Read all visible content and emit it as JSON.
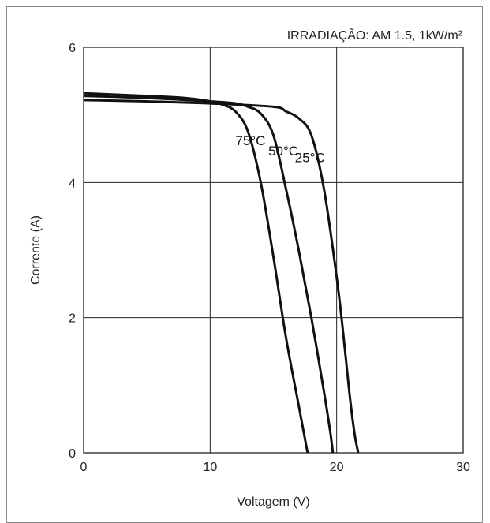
{
  "chart_data": {
    "type": "line",
    "title": "IRRADIAÇÃO: AM 1.5, 1kW/m²",
    "xlabel": "Voltagem (V)",
    "ylabel": "Corrente (A)",
    "xlim": [
      0,
      30
    ],
    "ylim": [
      0,
      6
    ],
    "x_ticks": [
      "0",
      "10",
      "20",
      "30"
    ],
    "y_ticks": [
      "0",
      "2",
      "4",
      "6"
    ],
    "grid": true,
    "series": [
      {
        "name": "75°C",
        "x": [
          0,
          5,
          8,
          10,
          11,
          12,
          13,
          14,
          15,
          16,
          17,
          17.5,
          17.7
        ],
        "y": [
          5.32,
          5.28,
          5.25,
          5.2,
          5.15,
          5.05,
          4.75,
          4.0,
          2.9,
          1.7,
          0.7,
          0.2,
          0
        ]
      },
      {
        "name": "50°C",
        "x": [
          0,
          5,
          10,
          12,
          13,
          14,
          15,
          16,
          17,
          18,
          19,
          19.5,
          19.7
        ],
        "y": [
          5.28,
          5.25,
          5.2,
          5.17,
          5.12,
          5.02,
          4.7,
          3.9,
          3.0,
          2.0,
          0.9,
          0.3,
          0
        ]
      },
      {
        "name": "25°C",
        "x": [
          0,
          5,
          10,
          15,
          16,
          17,
          18,
          19,
          20,
          20.5,
          21,
          21.4,
          21.7
        ],
        "y": [
          5.22,
          5.2,
          5.17,
          5.12,
          5.05,
          4.95,
          4.7,
          3.9,
          2.6,
          1.8,
          0.9,
          0.3,
          0
        ]
      }
    ]
  }
}
